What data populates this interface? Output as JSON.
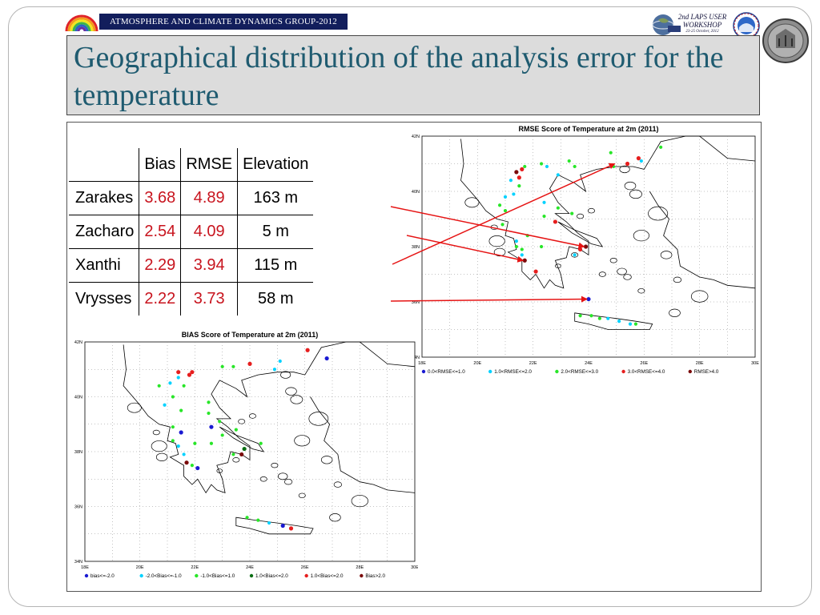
{
  "header": {
    "group_banner": "ATMOSPHERE AND CLIMATE DYNAMICS GROUP-2012",
    "workshop_line1": "2nd LAPS USER",
    "workshop_line2": "WORKSHOP",
    "workshop_line3": "23-25 October, 2012"
  },
  "slide": {
    "title": "Geographical distribution of the analysis error for the temperature"
  },
  "table": {
    "headers": [
      "",
      "Bias",
      "RMSE",
      "Elevation"
    ],
    "rows": [
      {
        "station": "Zarakes",
        "bias": "3.68",
        "rmse": "4.89",
        "elevation": "163 m"
      },
      {
        "station": "Zacharo",
        "bias": "2.54",
        "rmse": "4.09",
        "elevation": "5 m"
      },
      {
        "station": "Xanthi",
        "bias": "2.29",
        "rmse": "3.94",
        "elevation": "115 m"
      },
      {
        "station": "Vrysses",
        "bias": "2.22",
        "rmse": "3.73",
        "elevation": "58 m"
      }
    ]
  },
  "chart_data": [
    {
      "type": "scatter",
      "title": "RMSE Score of Temperature at 2m (2011)",
      "x_ticks": [
        "18E",
        "20E",
        "22E",
        "24E",
        "26E",
        "28E",
        "30E"
      ],
      "y_ticks": [
        "42N",
        "40N",
        "38N",
        "36N",
        "34N"
      ],
      "xlim": [
        18,
        30
      ],
      "ylim": [
        34,
        42
      ],
      "legend": [
        {
          "label": "0.0<RMSE<=1.0",
          "color": "#1a1ad2"
        },
        {
          "label": "1.0<RMSE<=2.0",
          "color": "#00d2ff"
        },
        {
          "label": "2.0<RMSE<=3.0",
          "color": "#28e628"
        },
        {
          "label": "3.0<RMSE<=4.0",
          "color": "#e61e1e"
        },
        {
          "label": "RMSE>4.0",
          "color": "#7a0a0a"
        }
      ],
      "legend_position": "bottom"
    },
    {
      "type": "scatter",
      "title": "BIAS Score of Temperature at 2m (2011)",
      "x_ticks": [
        "18E",
        "20E",
        "22E",
        "24E",
        "26E",
        "28E",
        "30E"
      ],
      "y_ticks": [
        "42N",
        "40N",
        "38N",
        "36N",
        "34N"
      ],
      "xlim": [
        18,
        30
      ],
      "ylim": [
        34,
        42
      ],
      "legend": [
        {
          "label": "bias<=-2.0",
          "color": "#1a1ad2"
        },
        {
          "label": "-2.0<Bias<=-1.0",
          "color": "#00d2ff"
        },
        {
          "label": "-1.0<Bias<=1.0",
          "color": "#28e628"
        },
        {
          "label": "1.0<Bias<=2.0",
          "color": "#0a6e14"
        },
        {
          "label": "1.0<Bias<=2.0",
          "color": "#e61e1e"
        },
        {
          "label": "Bias>2.0",
          "color": "#7a0a0a"
        }
      ],
      "legend_position": "bottom"
    }
  ],
  "annotations": {
    "arrow_color": "#e61414"
  }
}
